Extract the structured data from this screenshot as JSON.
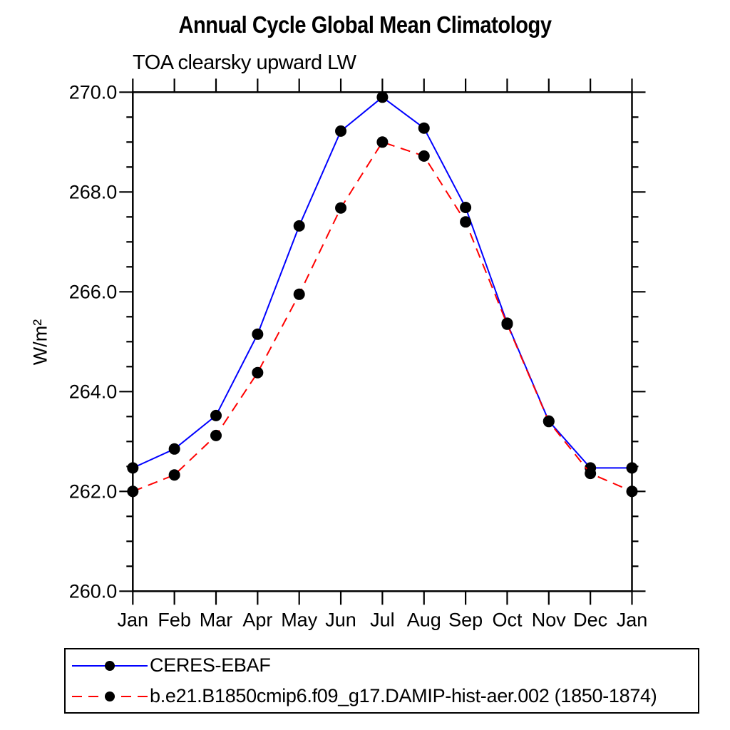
{
  "chart_data": {
    "type": "line",
    "title": "Annual Cycle Global Mean Climatology",
    "subtitle": "TOA clearsky upward LW",
    "ylabel": "W/m²",
    "categories": [
      "Jan",
      "Feb",
      "Mar",
      "Apr",
      "May",
      "Jun",
      "Jul",
      "Aug",
      "Sep",
      "Oct",
      "Nov",
      "Dec",
      "Jan"
    ],
    "series": [
      {
        "name": "CERES-EBAF",
        "color": "#0000ff",
        "line_style": "solid",
        "values": [
          262.47,
          262.85,
          263.52,
          265.15,
          267.32,
          269.22,
          269.9,
          269.28,
          267.69,
          265.37,
          263.41,
          262.47,
          262.47
        ]
      },
      {
        "name": "b.e21.B1850cmip6.f09_g17.DAMIP-hist-aer.002 (1850-1874)",
        "color": "#ff0000",
        "line_style": "dashed",
        "values": [
          262.0,
          262.33,
          263.12,
          264.38,
          265.95,
          267.68,
          269.0,
          268.72,
          267.4,
          265.35,
          263.4,
          262.36,
          262.0
        ]
      }
    ],
    "marker": "filled-circle",
    "marker_color": "#000000",
    "axis_color": "#000000",
    "ylim": [
      260.0,
      270.0
    ],
    "ytick_major": 2.0,
    "ytick_minor": 0.5,
    "ytick_labels": [
      "260.0",
      "262.0",
      "264.0",
      "266.0",
      "268.0",
      "270.0"
    ],
    "grid": false,
    "legend_position": "bottom-left"
  }
}
